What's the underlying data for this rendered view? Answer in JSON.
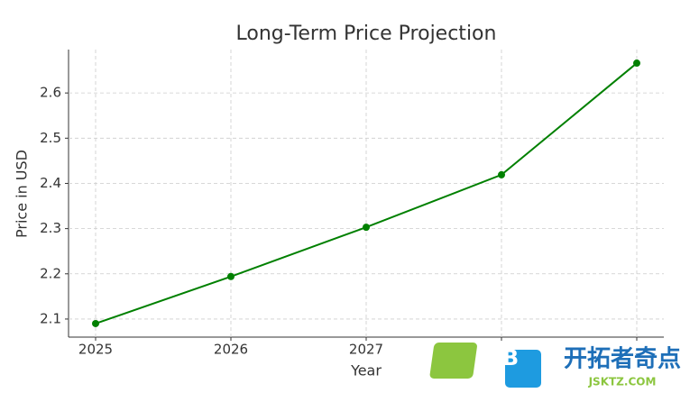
{
  "chart_data": {
    "type": "line",
    "title": "Long-Term Price Projection",
    "x_label": "Year",
    "y_label": "Price in USD",
    "categories": [
      "2025",
      "2026",
      "2027",
      null,
      null
    ],
    "series": [
      {
        "name": "Price",
        "color": "#008000",
        "values": [
          2.09,
          2.194,
          2.303,
          2.419,
          2.666
        ]
      }
    ],
    "ylim": [
      2.06,
      2.696
    ],
    "yticks": [
      2.1,
      2.2,
      2.3,
      2.4,
      2.5,
      2.6
    ],
    "grid": true
  },
  "watermark": {
    "title": "开拓者奇点",
    "subtitle": "JSKTZ.COM"
  }
}
